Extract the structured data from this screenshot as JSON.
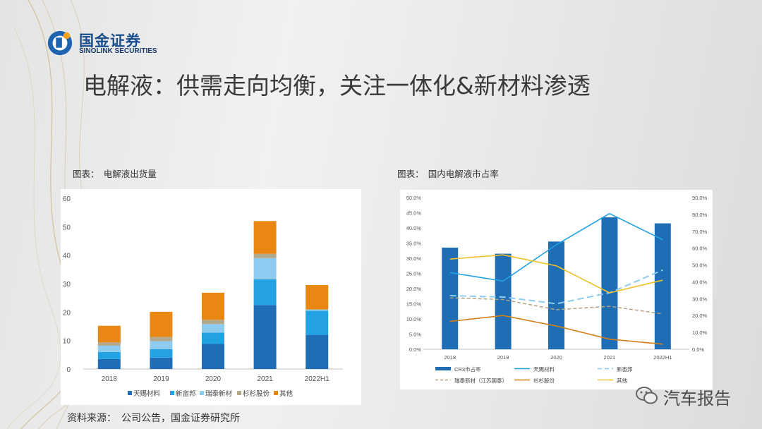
{
  "header": {
    "logo_cn": "国金证券",
    "logo_en": "SINOLINK SECURITIES",
    "title": "电解液：供需走向均衡，关注一体化&新材料渗透"
  },
  "footer": {
    "source": "资料来源：　公司公告，国金证券研究所",
    "watermark": "汽车报告"
  },
  "colors": {
    "tianci": "#1f6db4",
    "xinzhou": "#22a2e2",
    "ruitai": "#8dcbf0",
    "shanshan": "#b3a889",
    "other": "#ea8713",
    "cr3_bar": "#1f6db4",
    "others_line": "#f2c12e",
    "shanshan_line": "#d1801a",
    "ruitai_line": "#b8a282"
  },
  "chart_data": [
    {
      "type": "bar",
      "stacked": true,
      "caption": "图表：　电解液出货量",
      "categories": [
        "2018",
        "2019",
        "2020",
        "2021",
        "2022H1"
      ],
      "ylim": [
        0,
        60
      ],
      "yticks": [
        "0",
        "10",
        "20",
        "30",
        "40",
        "50",
        "60"
      ],
      "grid": false,
      "legend_position": "bottom",
      "series": [
        {
          "name": "天赐材料",
          "values": [
            3.5,
            4.0,
            8.8,
            22.5,
            12.0
          ]
        },
        {
          "name": "新宙邦",
          "values": [
            2.5,
            3.0,
            4.0,
            9.0,
            8.5
          ]
        },
        {
          "name": "瑞泰新材",
          "values": [
            2.2,
            2.8,
            3.0,
            7.5,
            0.3
          ]
        },
        {
          "name": "杉杉股份",
          "values": [
            1.2,
            1.5,
            1.5,
            1.5,
            0.2
          ]
        },
        {
          "name": "其他",
          "values": [
            5.8,
            8.8,
            9.5,
            11.5,
            8.5
          ]
        }
      ]
    },
    {
      "type": "bar",
      "caption": "图表：　国内电解液市占率",
      "categories": [
        "2018",
        "2019",
        "2020",
        "2021",
        "2022H1"
      ],
      "left_axis": {
        "ylim": [
          0,
          50
        ],
        "yticks": [
          "0.0%",
          "5.0%",
          "10.0%",
          "15.0%",
          "20.0%",
          "25.0%",
          "30.0%",
          "35.0%",
          "40.0%",
          "45.0%",
          "50.0%"
        ]
      },
      "right_axis": {
        "ylim": [
          0,
          90
        ],
        "yticks": [
          "0.0%",
          "10.0%",
          "20.0%",
          "30.0%",
          "40.0%",
          "50.0%",
          "60.0%",
          "70.0%",
          "80.0%",
          "90.0%"
        ]
      },
      "grid": false,
      "legend_position": "bottom",
      "bars": {
        "name": "CR3市占率",
        "axis": "left",
        "values": [
          33.5,
          31.5,
          35.5,
          43.5,
          41.5
        ]
      },
      "lines": [
        {
          "name": "天赐材料",
          "axis": "right",
          "style": "solid",
          "values": [
            45.5,
            40.5,
            62.0,
            80.5,
            65.0
          ]
        },
        {
          "name": "新宙邦",
          "axis": "right",
          "style": "dashed",
          "values": [
            31.8,
            31.0,
            27.0,
            33.5,
            47.0
          ]
        },
        {
          "name": "瑞泰新材（江苏国泰）",
          "axis": "right",
          "style": "dashed",
          "values": [
            30.5,
            29.5,
            23.5,
            25.5,
            21.0
          ]
        },
        {
          "name": "杉杉股份",
          "axis": "right",
          "style": "solid",
          "values": [
            16.5,
            20.0,
            13.8,
            6.0,
            3.0
          ]
        },
        {
          "name": "其他",
          "axis": "right",
          "style": "solid",
          "values": [
            53.5,
            56.0,
            49.5,
            33.5,
            41.0
          ]
        }
      ]
    }
  ]
}
